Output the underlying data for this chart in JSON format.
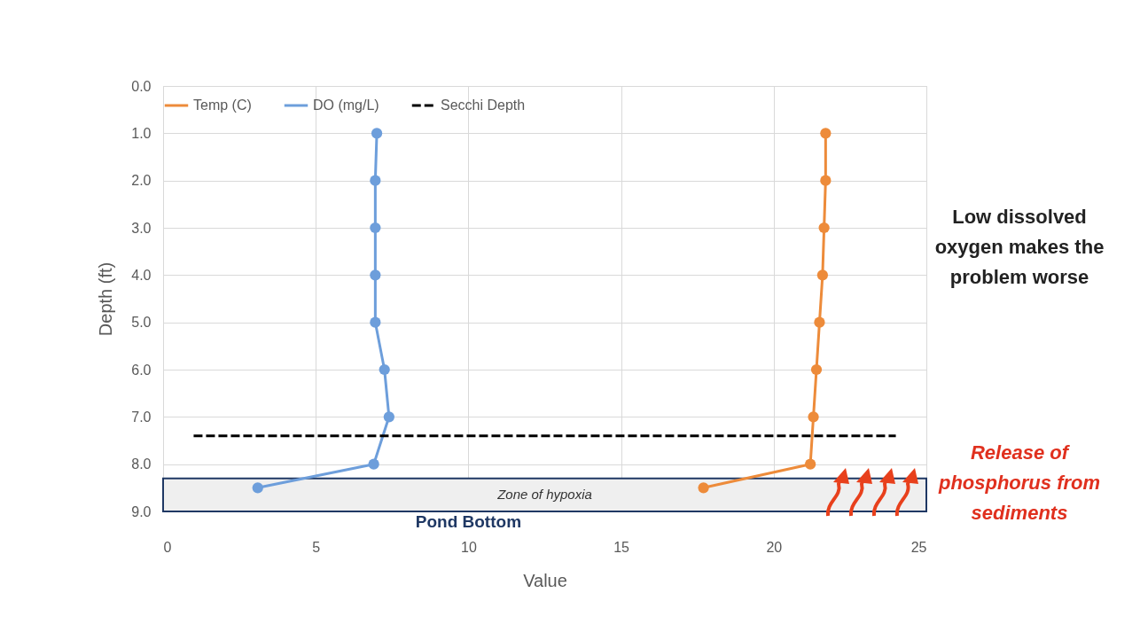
{
  "chart_data": {
    "type": "line",
    "xlabel": "Value",
    "ylabel": "Depth (ft)",
    "xlim": [
      0,
      25
    ],
    "xticks": [
      0,
      5,
      10,
      15,
      20,
      25
    ],
    "ylim": [
      9,
      0
    ],
    "yticks": [
      {
        "value": 0,
        "label": "0.0"
      },
      {
        "value": 1,
        "label": "1.0"
      },
      {
        "value": 2,
        "label": "2.0"
      },
      {
        "value": 3,
        "label": "3.0"
      },
      {
        "value": 4,
        "label": "4.0"
      },
      {
        "value": 5,
        "label": "5.0"
      },
      {
        "value": 6,
        "label": "6.0"
      },
      {
        "value": 7,
        "label": "7.0"
      },
      {
        "value": 8,
        "label": "8.0"
      },
      {
        "value": 9,
        "label": "9.0"
      }
    ],
    "grid": true,
    "legend": "top",
    "marker": "circle",
    "line_style": "solid",
    "series": [
      {
        "name": "Temp (C)",
        "color": "#ed8b3a",
        "x": [
          21.7,
          21.7,
          21.65,
          21.6,
          21.5,
          21.4,
          21.3,
          21.2,
          17.7
        ],
        "values": [
          1,
          2,
          3,
          4,
          5,
          6,
          7,
          8,
          8.5
        ]
      },
      {
        "name": "DO (mg/L)",
        "color": "#6d9edb",
        "x": [
          7.0,
          6.95,
          6.95,
          6.95,
          6.95,
          7.25,
          7.4,
          6.9,
          3.1
        ],
        "values": [
          1,
          2,
          3,
          4,
          5,
          6,
          7,
          8,
          8.5
        ]
      },
      {
        "name": "Secchi Depth",
        "color": "#000000",
        "type": "line",
        "marker": "none",
        "line_style": "dashed",
        "x": [
          1,
          24
        ],
        "values": [
          7.4,
          7.4
        ]
      }
    ],
    "bands": [
      {
        "axis": "y",
        "from": 8.3,
        "to": 9,
        "label": "Zone of hypoxia",
        "color": "#efefef"
      }
    ],
    "annotations": [
      {
        "text": "Pond Bottom",
        "x": 10,
        "y": 9
      },
      "Low dissolved oxygen makes the problem worse",
      "Release of phosphorus from sediments"
    ]
  }
}
